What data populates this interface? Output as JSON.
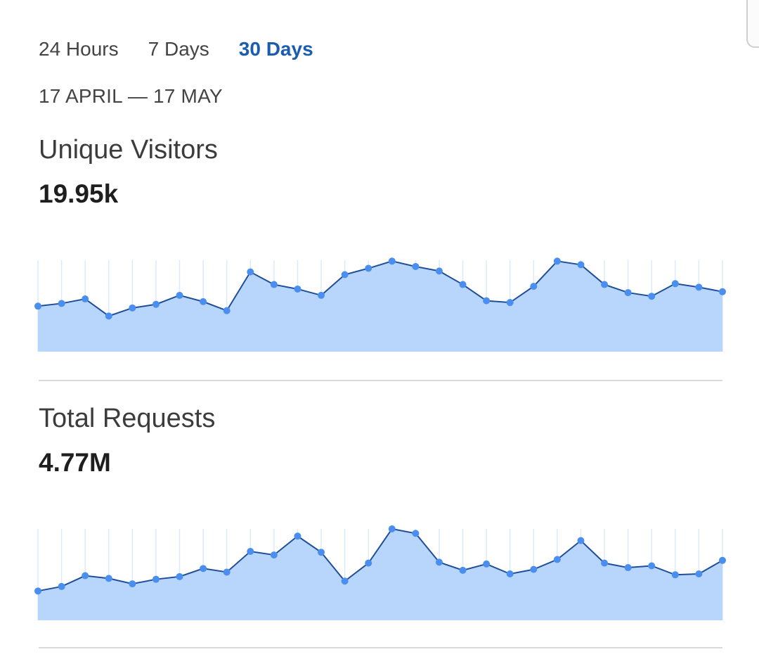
{
  "tabs": [
    {
      "label": "24 Hours",
      "active": false
    },
    {
      "label": "7 Days",
      "active": false
    },
    {
      "label": "30 Days",
      "active": true
    }
  ],
  "date_range": "17 APRIL — 17 MAY",
  "colors": {
    "accent": "#1a5cb0",
    "line": "#1f4e9a",
    "point": "#4a8ff0",
    "fill": "#b8d6fb",
    "gridline": "#dcebfb"
  },
  "metrics": [
    {
      "title": "Unique Visitors",
      "value": "19.95k"
    },
    {
      "title": "Total Requests",
      "value": "4.77M"
    }
  ],
  "chart_data": [
    {
      "type": "area",
      "ylim": [
        0,
        100
      ],
      "values": [
        49,
        52,
        57,
        38,
        47,
        51,
        61,
        54,
        44,
        87,
        73,
        68,
        61,
        84,
        91,
        99,
        93,
        88,
        73,
        55,
        53,
        71,
        99,
        95,
        73,
        64,
        60,
        74,
        70,
        65
      ]
    },
    {
      "type": "area",
      "ylim": [
        0,
        100
      ],
      "values": [
        31,
        36,
        48,
        45,
        39,
        44,
        47,
        56,
        52,
        75,
        71,
        92,
        74,
        42,
        62,
        100,
        95,
        63,
        54,
        61,
        50,
        55,
        66,
        87,
        62,
        57,
        59,
        49,
        50,
        65
      ]
    }
  ]
}
